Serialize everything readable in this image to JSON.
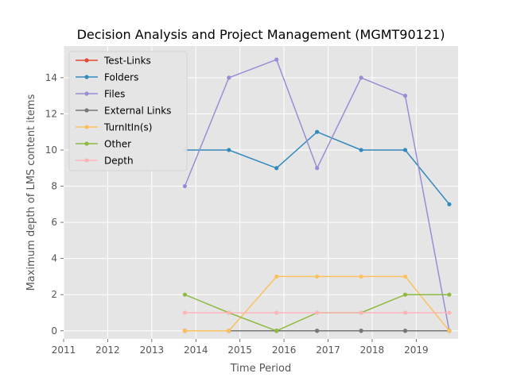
{
  "chart_data": {
    "type": "line",
    "title": "Decision Analysis and Project Management (MGMT90121)",
    "xlabel": "Time Period",
    "ylabel": "Maximum depth of LMS content items",
    "xlim": [
      2011,
      2019.95
    ],
    "ylim": [
      -0.45,
      15.75
    ],
    "xticks": [
      2011,
      2012,
      2013,
      2014,
      2015,
      2016,
      2017,
      2018,
      2019
    ],
    "yticks": [
      0,
      2,
      4,
      6,
      8,
      10,
      12,
      14
    ],
    "grid": true,
    "legend": "upper-left",
    "x": [
      2013.75,
      2014.75,
      2015.83,
      2016.75,
      2017.75,
      2018.75,
      2019.75
    ],
    "series": [
      {
        "name": "Test-Links",
        "color": "#E24A33",
        "values": [
          0,
          0,
          0,
          0,
          0,
          0,
          0
        ]
      },
      {
        "name": "Folders",
        "color": "#348ABD",
        "values": [
          10,
          10,
          9,
          11,
          10,
          10,
          7
        ]
      },
      {
        "name": "Files",
        "color": "#988ED5",
        "values": [
          8,
          14,
          15,
          9,
          14,
          13,
          0
        ]
      },
      {
        "name": "External Links",
        "color": "#777777",
        "values": [
          0,
          0,
          0,
          0,
          0,
          0,
          0
        ]
      },
      {
        "name": "TurnItIn(s)",
        "color": "#FBC15E",
        "values": [
          0,
          0,
          3,
          3,
          3,
          3,
          0
        ]
      },
      {
        "name": "Other",
        "color": "#8EBA42",
        "values": [
          2,
          1,
          0,
          1,
          1,
          2,
          2
        ]
      },
      {
        "name": "Depth",
        "color": "#FFB5B8",
        "values": [
          1,
          1,
          1,
          1,
          1,
          1,
          1
        ]
      }
    ]
  }
}
